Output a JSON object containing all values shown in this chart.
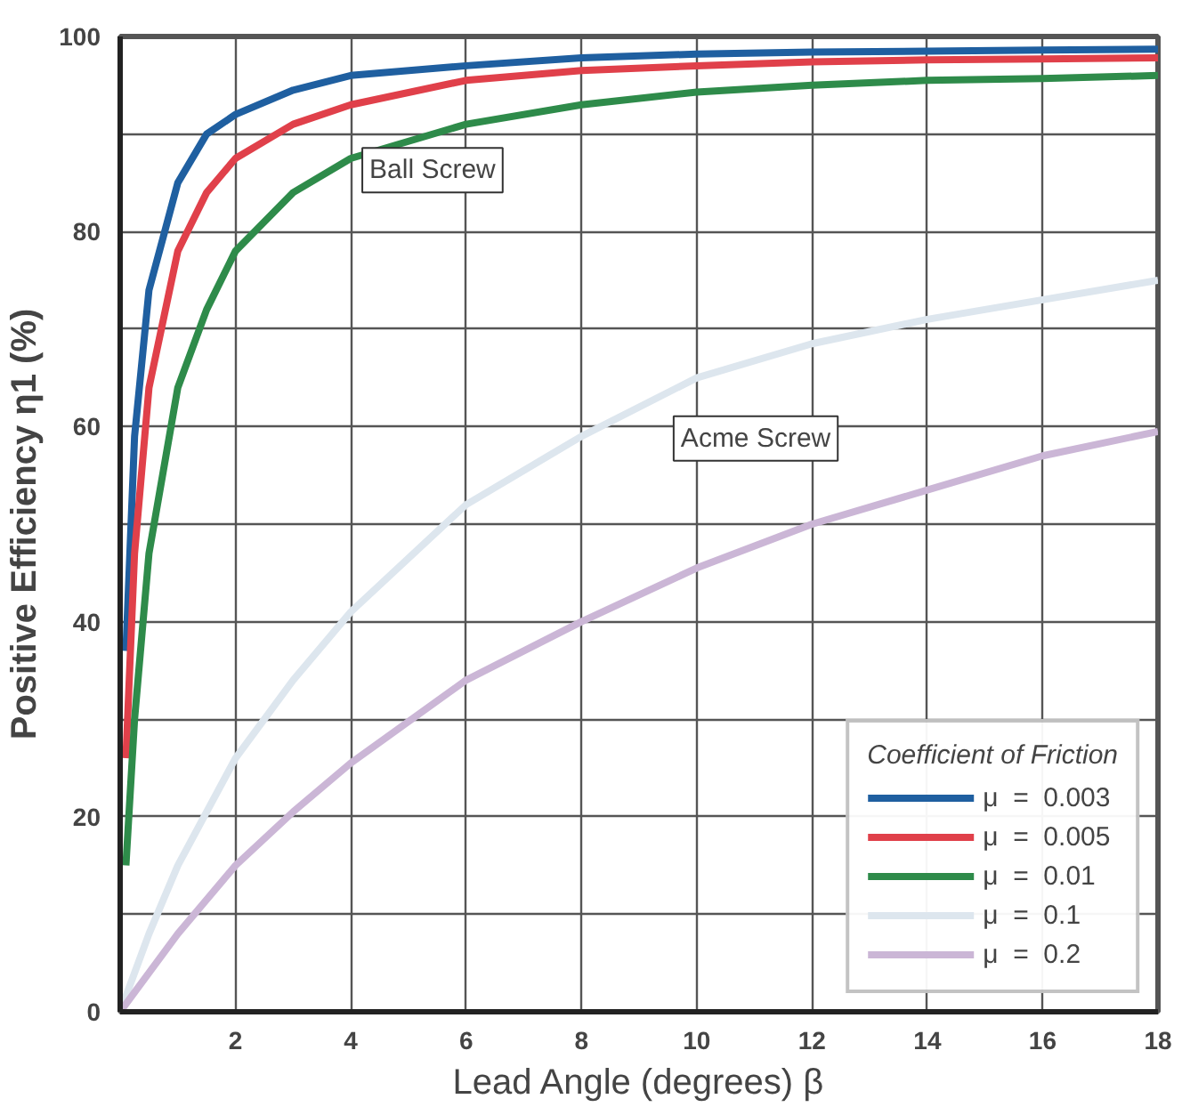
{
  "chart_data": {
    "type": "line",
    "xlabel": "Lead Angle (degrees) β",
    "ylabel": "Positive Efficiency η1 (%)",
    "legend_title": "Coefficient of Friction",
    "legend": "bottom right",
    "grid": true,
    "line_style": "solid",
    "xlim": [
      0,
      18
    ],
    "ylim": [
      0,
      100
    ],
    "xticks": [
      2,
      4,
      6,
      8,
      10,
      12,
      14,
      16,
      18
    ],
    "yticks": [
      0,
      {
        "value": 10,
        "label": null
      },
      20,
      {
        "value": 30,
        "label": null
      },
      40,
      {
        "value": 50,
        "label": null
      },
      60,
      {
        "value": 70,
        "label": null
      },
      80,
      {
        "value": 90,
        "label": null
      },
      100
    ],
    "series": [
      {
        "name": "μ  =  0.003",
        "color": "#1f5fa0",
        "x": [
          0.1,
          0.25,
          0.5,
          1,
          1.5,
          2,
          3,
          4,
          6,
          8,
          10,
          12,
          14,
          16,
          18
        ],
        "values": [
          37,
          59,
          74,
          85,
          90,
          92,
          94.5,
          96,
          97,
          97.8,
          98.2,
          98.4,
          98.5,
          98.6,
          98.7
        ]
      },
      {
        "name": "μ  =  0.005",
        "color": "#e0404a",
        "x": [
          0.1,
          0.25,
          0.5,
          1,
          1.5,
          2,
          3,
          4,
          6,
          8,
          10,
          12,
          14,
          16,
          18
        ],
        "values": [
          26,
          47,
          64,
          78,
          84,
          87.5,
          91,
          93,
          95.5,
          96.5,
          97,
          97.4,
          97.6,
          97.7,
          97.8
        ]
      },
      {
        "name": "μ  =  0.01",
        "color": "#2e8b4a",
        "x": [
          0.1,
          0.25,
          0.5,
          1,
          1.5,
          2,
          3,
          4,
          6,
          8,
          10,
          12,
          14,
          16,
          18
        ],
        "values": [
          15,
          30,
          47,
          64,
          72,
          78,
          84,
          87.5,
          91,
          93,
          94.3,
          95,
          95.5,
          95.7,
          96
        ]
      },
      {
        "name": "μ  =  0.1",
        "color": "#dde6ee",
        "x": [
          0,
          0.5,
          1,
          2,
          3,
          4,
          6,
          8,
          10,
          12,
          14,
          16,
          18
        ],
        "values": [
          0,
          8,
          15,
          26,
          34,
          41,
          52,
          59,
          65,
          68.5,
          71,
          73,
          75
        ]
      },
      {
        "name": "μ  =  0.2",
        "color": "#cbb6d6",
        "x": [
          0,
          1,
          2,
          3,
          4,
          6,
          8,
          10,
          12,
          14,
          16,
          18
        ],
        "values": [
          0,
          8,
          15,
          20.5,
          25.5,
          34,
          40,
          45.5,
          50,
          53.5,
          57,
          59.5
        ]
      }
    ],
    "annotations": [
      "Ball Screw",
      "Acme Screw"
    ]
  }
}
